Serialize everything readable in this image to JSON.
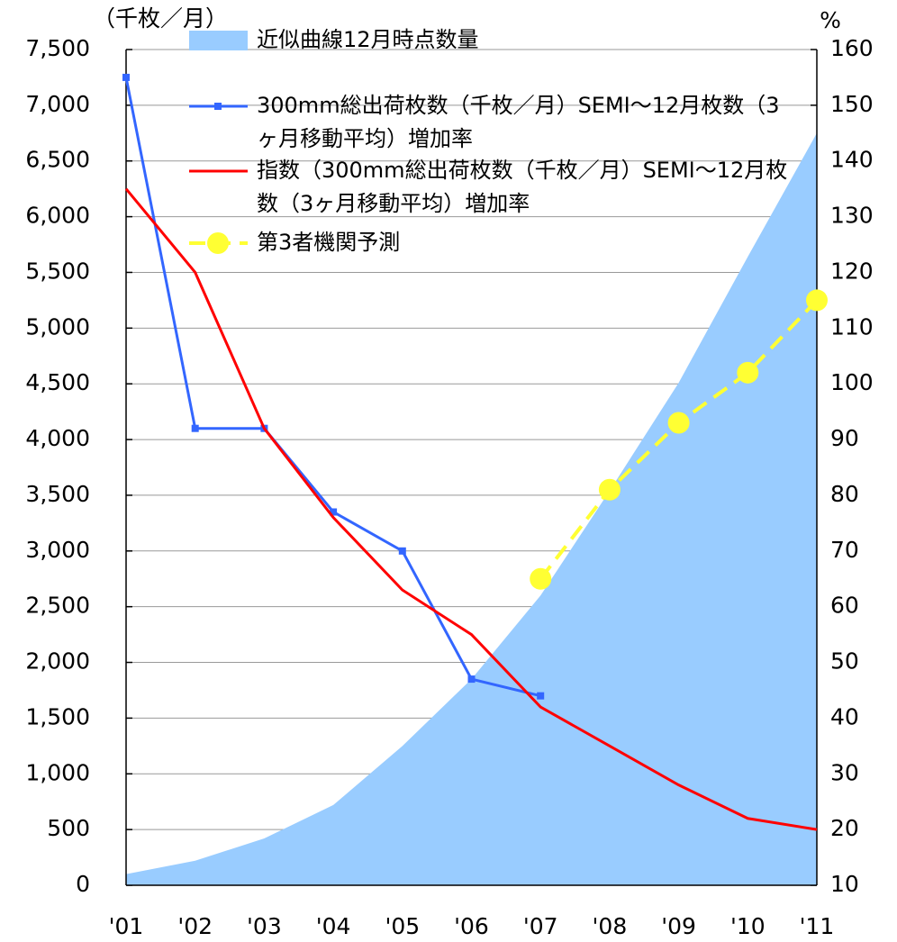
{
  "chart_data": {
    "type": "line",
    "y_label": "（千枚／月）",
    "y2_label": "%",
    "categories": [
      "'01",
      "'02",
      "'03",
      "'04",
      "'05",
      "'06",
      "'07",
      "'08",
      "'09",
      "'10",
      "'11"
    ],
    "series": [
      {
        "name": "近似曲線12月時点数量",
        "type": "area",
        "color": "#99ccff",
        "values": [
          100,
          220,
          420,
          720,
          1250,
          1850,
          2600,
          3540,
          4510,
          5640,
          6750
        ]
      },
      {
        "name": "300mm総出荷枚数（千枚／月）SEMI～12月枚数（3ヶ月移動平均）増加率",
        "type": "line",
        "axis": "y2",
        "color": "#3366ff",
        "marker": "square",
        "values": [
          155,
          92,
          92,
          77,
          70,
          47,
          44,
          null,
          null,
          null,
          null
        ]
      },
      {
        "name": "指数（300mm総出荷枚数（千枚／月）SEMI～12月枚数（3ヶ月移動平均）増加率",
        "type": "line",
        "axis": "y2",
        "color": "#ff0000",
        "values": [
          135,
          120,
          92,
          76,
          63,
          55,
          42,
          35,
          28,
          22,
          20
        ]
      },
      {
        "name": "第3者機関予測",
        "type": "line",
        "color": "#ffff33",
        "marker": "circle",
        "dashed": true,
        "values": [
          null,
          null,
          null,
          null,
          null,
          null,
          2750,
          3550,
          4150,
          4600,
          5250
        ]
      }
    ],
    "ylim": [
      0,
      7500
    ],
    "yticks": [
      0,
      500,
      {
        "value": 1000,
        "label": "1,000"
      },
      {
        "value": 1500,
        "label": "1,500"
      },
      {
        "value": 2000,
        "label": "2,000"
      },
      {
        "value": 2500,
        "label": "2,500"
      },
      {
        "value": 3000,
        "label": "3,000"
      },
      {
        "value": 3500,
        "label": "3,500"
      },
      {
        "value": 4000,
        "label": "4,000"
      },
      {
        "value": 4500,
        "label": "4,500"
      },
      {
        "value": 5000,
        "label": "5,000"
      },
      {
        "value": 5500,
        "label": "5,500"
      },
      {
        "value": 6000,
        "label": "6,000"
      },
      {
        "value": 6500,
        "label": "6,500"
      },
      {
        "value": 7000,
        "label": "7,000"
      },
      {
        "value": 7500,
        "label": "7,500"
      }
    ],
    "y2lim": [
      10,
      160
    ],
    "y2ticks": [
      10,
      20,
      30,
      40,
      50,
      60,
      70,
      80,
      90,
      100,
      110,
      120,
      130,
      140,
      150,
      160
    ],
    "grid": true
  }
}
